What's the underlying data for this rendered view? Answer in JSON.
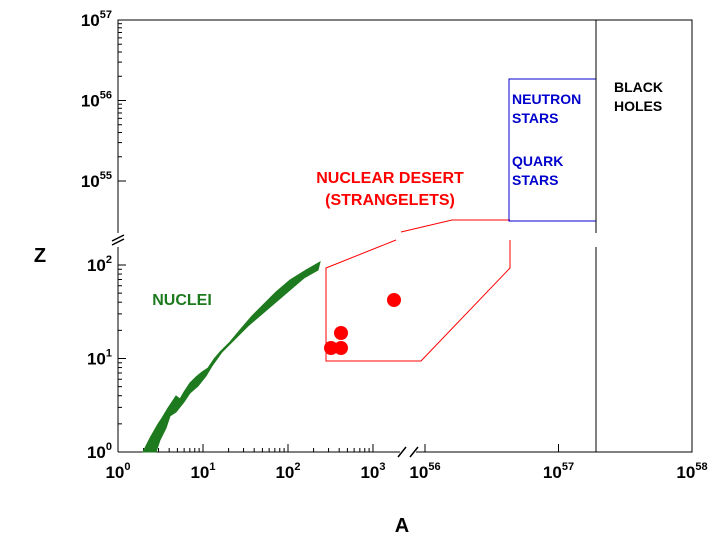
{
  "chart_data": {
    "type": "scatter",
    "title": "",
    "xlabel": "A",
    "ylabel": "Z",
    "x_axis": {
      "scale": "log, broken",
      "segments": [
        {
          "range": [
            1,
            3000
          ],
          "ticks": [
            {
              "base": "10",
              "exp": "0"
            },
            {
              "base": "10",
              "exp": "1"
            },
            {
              "base": "10",
              "exp": "2"
            },
            {
              "base": "10",
              "exp": "3"
            }
          ]
        },
        {
          "range": [
            "1e56",
            "1e58"
          ],
          "ticks": [
            {
              "base": "10",
              "exp": "56"
            },
            {
              "base": "10",
              "exp": "57"
            },
            {
              "base": "10",
              "exp": "58"
            }
          ]
        }
      ]
    },
    "y_axis": {
      "scale": "log, broken",
      "segments": [
        {
          "range": [
            1,
            150
          ],
          "ticks": [
            {
              "base": "10",
              "exp": "0"
            },
            {
              "base": "10",
              "exp": "1"
            },
            {
              "base": "10",
              "exp": "2"
            }
          ]
        },
        {
          "range": [
            "3e54",
            "1e57"
          ],
          "ticks": [
            {
              "base": "10",
              "exp": "55"
            },
            {
              "base": "10",
              "exp": "56"
            },
            {
              "base": "10",
              "exp": "57"
            }
          ]
        }
      ]
    },
    "series": [
      {
        "name": "NUCLEI",
        "color": "#1e7a1e",
        "kind": "band"
      },
      {
        "name": "strangelets",
        "color": "#ff0000",
        "kind": "points",
        "points": [
          {
            "x": 300,
            "y": 14
          },
          {
            "x": 380,
            "y": 14
          },
          {
            "x": 380,
            "y": 20
          },
          {
            "x": 1900,
            "y": 45
          }
        ]
      }
    ],
    "annotations": [
      {
        "id": "nuclei",
        "lines": [
          "NUCLEI"
        ],
        "color": "#1e7a1e"
      },
      {
        "id": "desert",
        "lines": [
          "NUCLEAR DESERT",
          "(STRANGELETS)"
        ],
        "color": "#ff0000"
      },
      {
        "id": "neutron",
        "lines": [
          "NEUTRON",
          "STARS"
        ],
        "color": "#0000cc"
      },
      {
        "id": "quark",
        "lines": [
          "QUARK",
          "STARS"
        ],
        "color": "#0000cc"
      },
      {
        "id": "blackholes",
        "lines": [
          "BLACK",
          "HOLES"
        ],
        "color": "#000000"
      }
    ],
    "grid": false,
    "legend": "none"
  }
}
